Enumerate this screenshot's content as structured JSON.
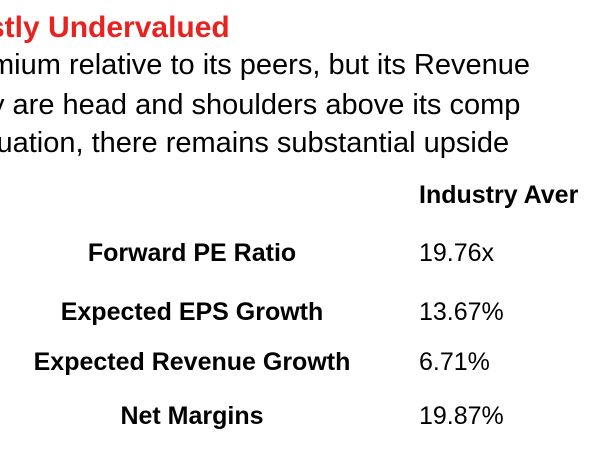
{
  "slide": {
    "title": "stly Undervalued",
    "body_lines": [
      "mium relative to its peers, but its Revenue",
      "y are head and shoulders above its comp",
      "luation, there remains substantial upside"
    ],
    "table": {
      "column_header": "Industry Aver",
      "rows": [
        {
          "metric": "Forward PE Ratio",
          "value": "19.76x"
        },
        {
          "metric": "Expected EPS Growth",
          "value": "13.67%"
        },
        {
          "metric": "Expected Revenue Growth",
          "value": "6.71%"
        },
        {
          "metric": "Net Margins",
          "value": "19.87%"
        }
      ]
    },
    "colors": {
      "title": "#e8231f",
      "text": "#000000",
      "background": "#ffffff"
    }
  }
}
